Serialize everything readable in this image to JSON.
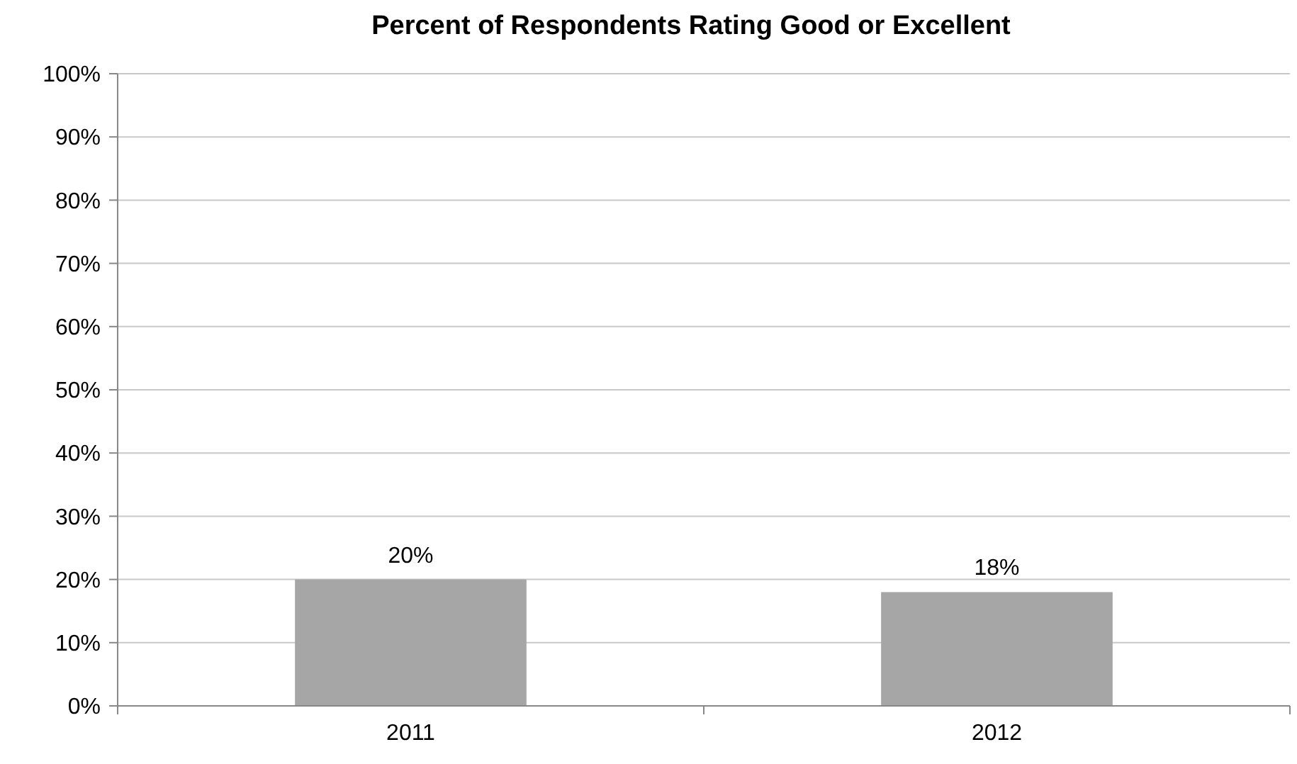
{
  "chart_data": {
    "type": "bar",
    "title": "Percent of Respondents Rating Good or Excellent",
    "categories": [
      "2011",
      "2012"
    ],
    "values": [
      20,
      18
    ],
    "value_labels": [
      "20%",
      "18%"
    ],
    "color": "#a6a6a6",
    "ylim": [
      0,
      100
    ],
    "yticks": [
      {
        "value": 0,
        "label": "0%"
      },
      {
        "value": 10,
        "label": "10%"
      },
      {
        "value": 20,
        "label": "20%"
      },
      {
        "value": 30,
        "label": "30%"
      },
      {
        "value": 40,
        "label": "40%"
      },
      {
        "value": 50,
        "label": "50%"
      },
      {
        "value": 60,
        "label": "60%"
      },
      {
        "value": 70,
        "label": "70%"
      },
      {
        "value": 80,
        "label": "80%"
      },
      {
        "value": 90,
        "label": "90%"
      },
      {
        "value": 100,
        "label": "100%"
      }
    ],
    "grid": "y"
  }
}
